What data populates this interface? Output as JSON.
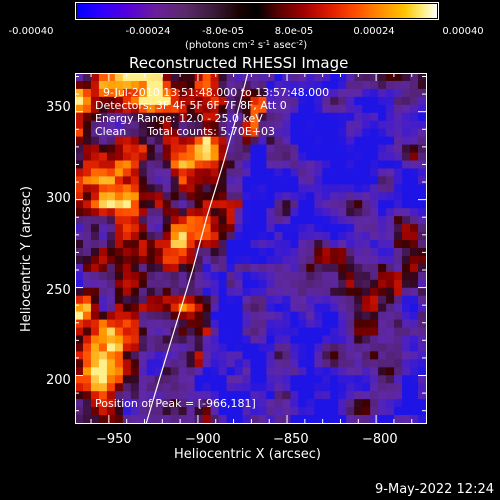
{
  "colorbar": {
    "tick_labels": [
      "-0.00040",
      "-0.00024",
      "-8.0e-05",
      "8.0e-05",
      "0.00024",
      "0.00040"
    ],
    "units_prefix": "(photons cm",
    "units_sup1": "-2",
    "units_mid1": " s",
    "units_sup2": "-1",
    "units_mid2": " asec",
    "units_sup3": "-2",
    "units_suffix": ")"
  },
  "chart_data": {
    "type": "heatmap",
    "title": "Reconstructed RHESSI Image",
    "xlabel": "Heliocentric X (arcsec)",
    "ylabel": "Heliocentric Y (arcsec)",
    "xlim": [
      -969,
      -772
    ],
    "ylim": [
      173,
      372
    ],
    "x_ticks": [
      -950,
      -900,
      -850,
      -800
    ],
    "x_tick_labels": [
      "−950",
      "−900",
      "−850",
      "−800"
    ],
    "y_ticks": [
      200,
      250,
      300,
      350
    ],
    "y_tick_labels": [
      "200",
      "250",
      "300",
      "350"
    ],
    "colorbar_range": [
      -0.0004,
      0.0004
    ],
    "limb_curve": [
      [
        -929,
        173
      ],
      [
        -921,
        200
      ],
      [
        -912,
        230
      ],
      [
        -903,
        260
      ],
      [
        -895,
        290
      ],
      [
        -886,
        320
      ],
      [
        -879,
        345
      ],
      [
        -872,
        372
      ]
    ],
    "peak_position": [
      -966,
      181
    ]
  },
  "annotations": {
    "time_range": "9-Jul-2010 13:51:48.000 to 13:57:48.000",
    "detectors": "Detectors: 3F 4F 5F 6F 7F 8F, Att 0",
    "energy_range": "Energy Range: 12.0 - 25.0 keV",
    "clean_line": "Clean      Total counts: 5.70E+03",
    "peak_position": "Position of Peak = [-966,181]"
  },
  "footer": {
    "date_stamp": "9-May-2022 12:24"
  }
}
